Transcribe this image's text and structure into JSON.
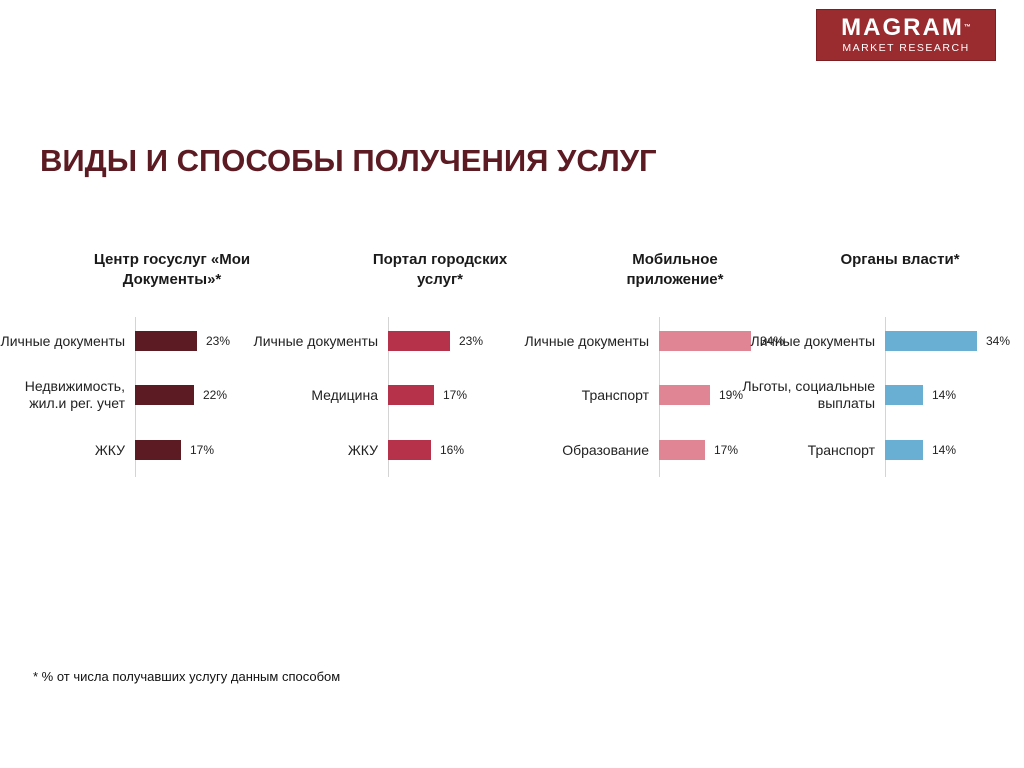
{
  "logo": {
    "main": "MAGRAM",
    "tm": "™",
    "sub": "MARKET RESEARCH"
  },
  "title": "ВИДЫ И СПОСОБЫ ПОЛУЧЕНИЯ УСЛУГ",
  "footnote": "* % от числа получавших услугу данным способом",
  "chart_data": [
    {
      "type": "bar",
      "orientation": "horizontal",
      "title": "Центр госуслуг «Мои Документы»*",
      "categories": [
        "Личные документы",
        "Недвижимость, жил.и рег. учет",
        "ЖКУ"
      ],
      "values": [
        23,
        22,
        17
      ],
      "labels": [
        "23%",
        "22%",
        "17%"
      ],
      "color": "#5c1a22"
    },
    {
      "type": "bar",
      "orientation": "horizontal",
      "title": "Портал городских услуг*",
      "categories": [
        "Личные документы",
        "Медицина",
        "ЖКУ"
      ],
      "values": [
        23,
        17,
        16
      ],
      "labels": [
        "23%",
        "17%",
        "16%"
      ],
      "color": "#b5324a"
    },
    {
      "type": "bar",
      "orientation": "horizontal",
      "title": "Мобильное приложение*",
      "categories": [
        "Личные документы",
        "Транспорт",
        "Образование"
      ],
      "values": [
        34,
        19,
        17
      ],
      "labels": [
        "34%",
        "19%",
        "17%"
      ],
      "color": "#e08593"
    },
    {
      "type": "bar",
      "orientation": "horizontal",
      "title": "Органы власти*",
      "categories": [
        "Личные документы",
        "Льготы, социальные выплаты",
        "Транспорт"
      ],
      "values": [
        34,
        14,
        14
      ],
      "labels": [
        "34%",
        "14%",
        "14%"
      ],
      "color": "#68afd3"
    }
  ]
}
